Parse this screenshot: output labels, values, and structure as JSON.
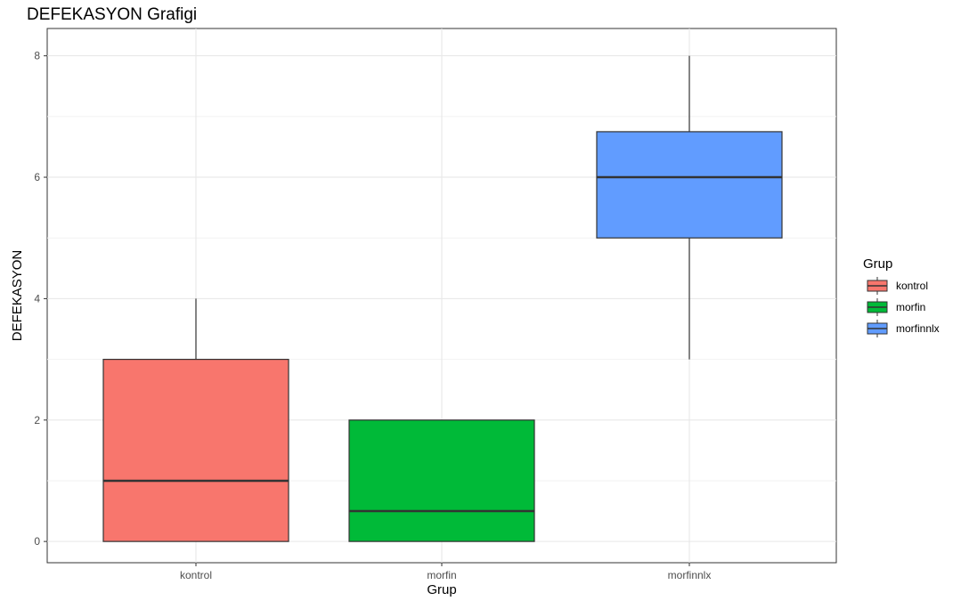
{
  "chart_data": {
    "type": "boxplot",
    "title": "DEFEKASYON  Grafigi",
    "xlabel": "Grup",
    "ylabel": "DEFEKASYON",
    "categories": [
      "kontrol",
      "morfin",
      "morfinnlx"
    ],
    "ylim": [
      -0.35,
      8.45
    ],
    "yticks": [
      0,
      2,
      4,
      6,
      8
    ],
    "grid": true,
    "legend": {
      "title": "Grup",
      "position": "right",
      "entries": [
        "kontrol",
        "morfin",
        "morfinnlx"
      ]
    },
    "series": [
      {
        "name": "kontrol",
        "color": "#F8766D",
        "min": 0,
        "q1": 0,
        "median": 1,
        "q3": 3,
        "max": 4
      },
      {
        "name": "morfin",
        "color": "#00BA38",
        "min": 0,
        "q1": 0,
        "median": 0.5,
        "q3": 2,
        "max": 2
      },
      {
        "name": "morfinnlx",
        "color": "#619CFF",
        "min": 3,
        "q1": 5,
        "median": 6,
        "q3": 6.75,
        "max": 8
      }
    ]
  }
}
